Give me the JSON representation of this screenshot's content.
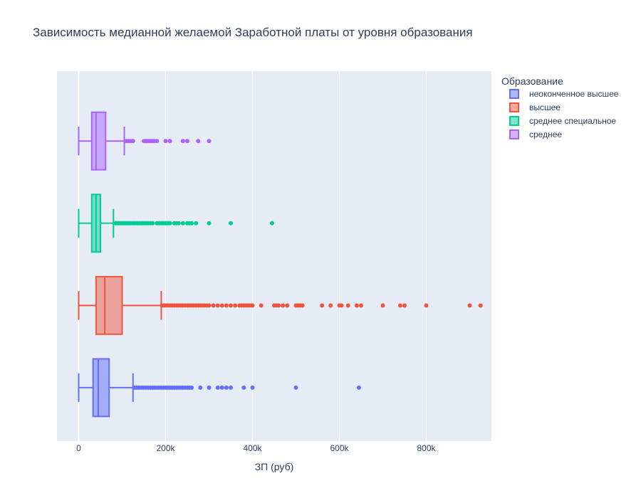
{
  "chart_data": {
    "type": "box",
    "orientation": "horizontal",
    "title": "Зависимость медианной желаемой Заработной платы от уровня образования",
    "xlabel": "ЗП (руб)",
    "ylabel": "",
    "xlim": [
      -50000,
      950000
    ],
    "x_ticks": [
      0,
      200000,
      400000,
      600000,
      800000
    ],
    "x_tick_labels": [
      "0",
      "200k",
      "400k",
      "600k",
      "800k"
    ],
    "grid": true,
    "legend_title": "Образование",
    "legend_position": "top-right",
    "series": [
      {
        "name": "неоконченное высшее",
        "color": "#636efa",
        "fill": "rgba(99,110,250,0.5)",
        "q1": 33000,
        "median": 45000,
        "q3": 70000,
        "lower_fence": 0,
        "upper_fence": 125000,
        "outliers": [
          128000,
          132000,
          136000,
          140000,
          145000,
          150000,
          155000,
          160000,
          165000,
          170000,
          175000,
          180000,
          185000,
          190000,
          195000,
          200000,
          205000,
          210000,
          215000,
          220000,
          225000,
          230000,
          235000,
          240000,
          245000,
          250000,
          255000,
          260000,
          280000,
          300000,
          320000,
          330000,
          340000,
          350000,
          380000,
          400000,
          500000,
          645000
        ]
      },
      {
        "name": "высшее",
        "color": "#ef553b",
        "fill": "rgba(239,85,59,0.5)",
        "q1": 40000,
        "median": 60000,
        "q3": 100000,
        "lower_fence": 0,
        "upper_fence": 190000,
        "outliers": [
          192000,
          196000,
          200000,
          205000,
          210000,
          215000,
          220000,
          225000,
          230000,
          235000,
          240000,
          245000,
          250000,
          255000,
          260000,
          265000,
          270000,
          275000,
          280000,
          285000,
          290000,
          295000,
          300000,
          310000,
          320000,
          330000,
          340000,
          350000,
          360000,
          370000,
          375000,
          380000,
          385000,
          390000,
          395000,
          400000,
          420000,
          450000,
          455000,
          460000,
          470000,
          480000,
          500000,
          505000,
          510000,
          515000,
          560000,
          580000,
          600000,
          605000,
          620000,
          640000,
          650000,
          700000,
          740000,
          750000,
          800000,
          900000,
          925000
        ]
      },
      {
        "name": "среднее специальное",
        "color": "#00cc96",
        "fill": "rgba(0,204,150,0.5)",
        "q1": 30000,
        "median": 40000,
        "q3": 50000,
        "lower_fence": 0,
        "upper_fence": 80000,
        "outliers": [
          85000,
          90000,
          95000,
          100000,
          105000,
          110000,
          115000,
          120000,
          125000,
          130000,
          135000,
          140000,
          145000,
          150000,
          155000,
          160000,
          165000,
          170000,
          180000,
          185000,
          190000,
          195000,
          200000,
          205000,
          210000,
          220000,
          225000,
          230000,
          240000,
          250000,
          255000,
          260000,
          270000,
          300000,
          350000,
          445000
        ]
      },
      {
        "name": "среднее",
        "color": "#ab63fa",
        "fill": "rgba(171,99,250,0.5)",
        "q1": 30000,
        "median": 40000,
        "q3": 62000,
        "lower_fence": 0,
        "upper_fence": 105000,
        "outliers": [
          110000,
          115000,
          120000,
          125000,
          150000,
          155000,
          160000,
          165000,
          170000,
          175000,
          180000,
          200000,
          210000,
          240000,
          250000,
          275000,
          300000
        ]
      }
    ]
  }
}
